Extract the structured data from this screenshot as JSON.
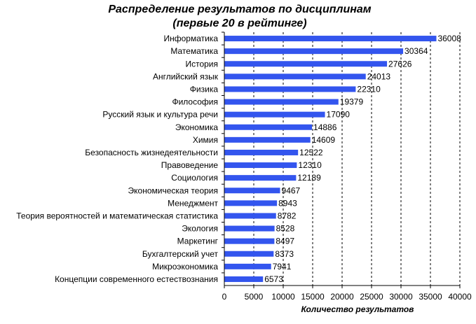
{
  "chart_data": {
    "type": "bar",
    "orientation": "horizontal",
    "title": "Распределение результатов по дисциплинам",
    "subtitle": "(первые 20 в рейтинге)",
    "xlabel": "Количество результатов",
    "ylabel": "",
    "xlim": [
      0,
      40000
    ],
    "xticks": [
      "0",
      "5000",
      "10000",
      "15000",
      "20000",
      "25000",
      "30000",
      "35000",
      "40000"
    ],
    "grid": "vertical-dashed",
    "legend": "none",
    "bar_color": "#3355ee",
    "categories": [
      "Информатика",
      "Математика",
      "История",
      "Английский язык",
      "Физика",
      "Философия",
      "Русский язык и культура речи",
      "Экономика",
      "Химия",
      "Безопасность жизнедеятельности",
      "Правоведение",
      "Социология",
      "Экономическая теория",
      "Менеджмент",
      "Теория вероятностей и математическая статистика",
      "Экология",
      "Маркетинг",
      "Бухгалтерский учет",
      "Микроэкономика",
      "Концепции современного естествознания"
    ],
    "values": [
      36008,
      30364,
      27626,
      24013,
      22310,
      19379,
      17090,
      14886,
      14609,
      12522,
      12310,
      12189,
      9467,
      8943,
      8782,
      8528,
      8497,
      8373,
      7941,
      6573
    ]
  }
}
